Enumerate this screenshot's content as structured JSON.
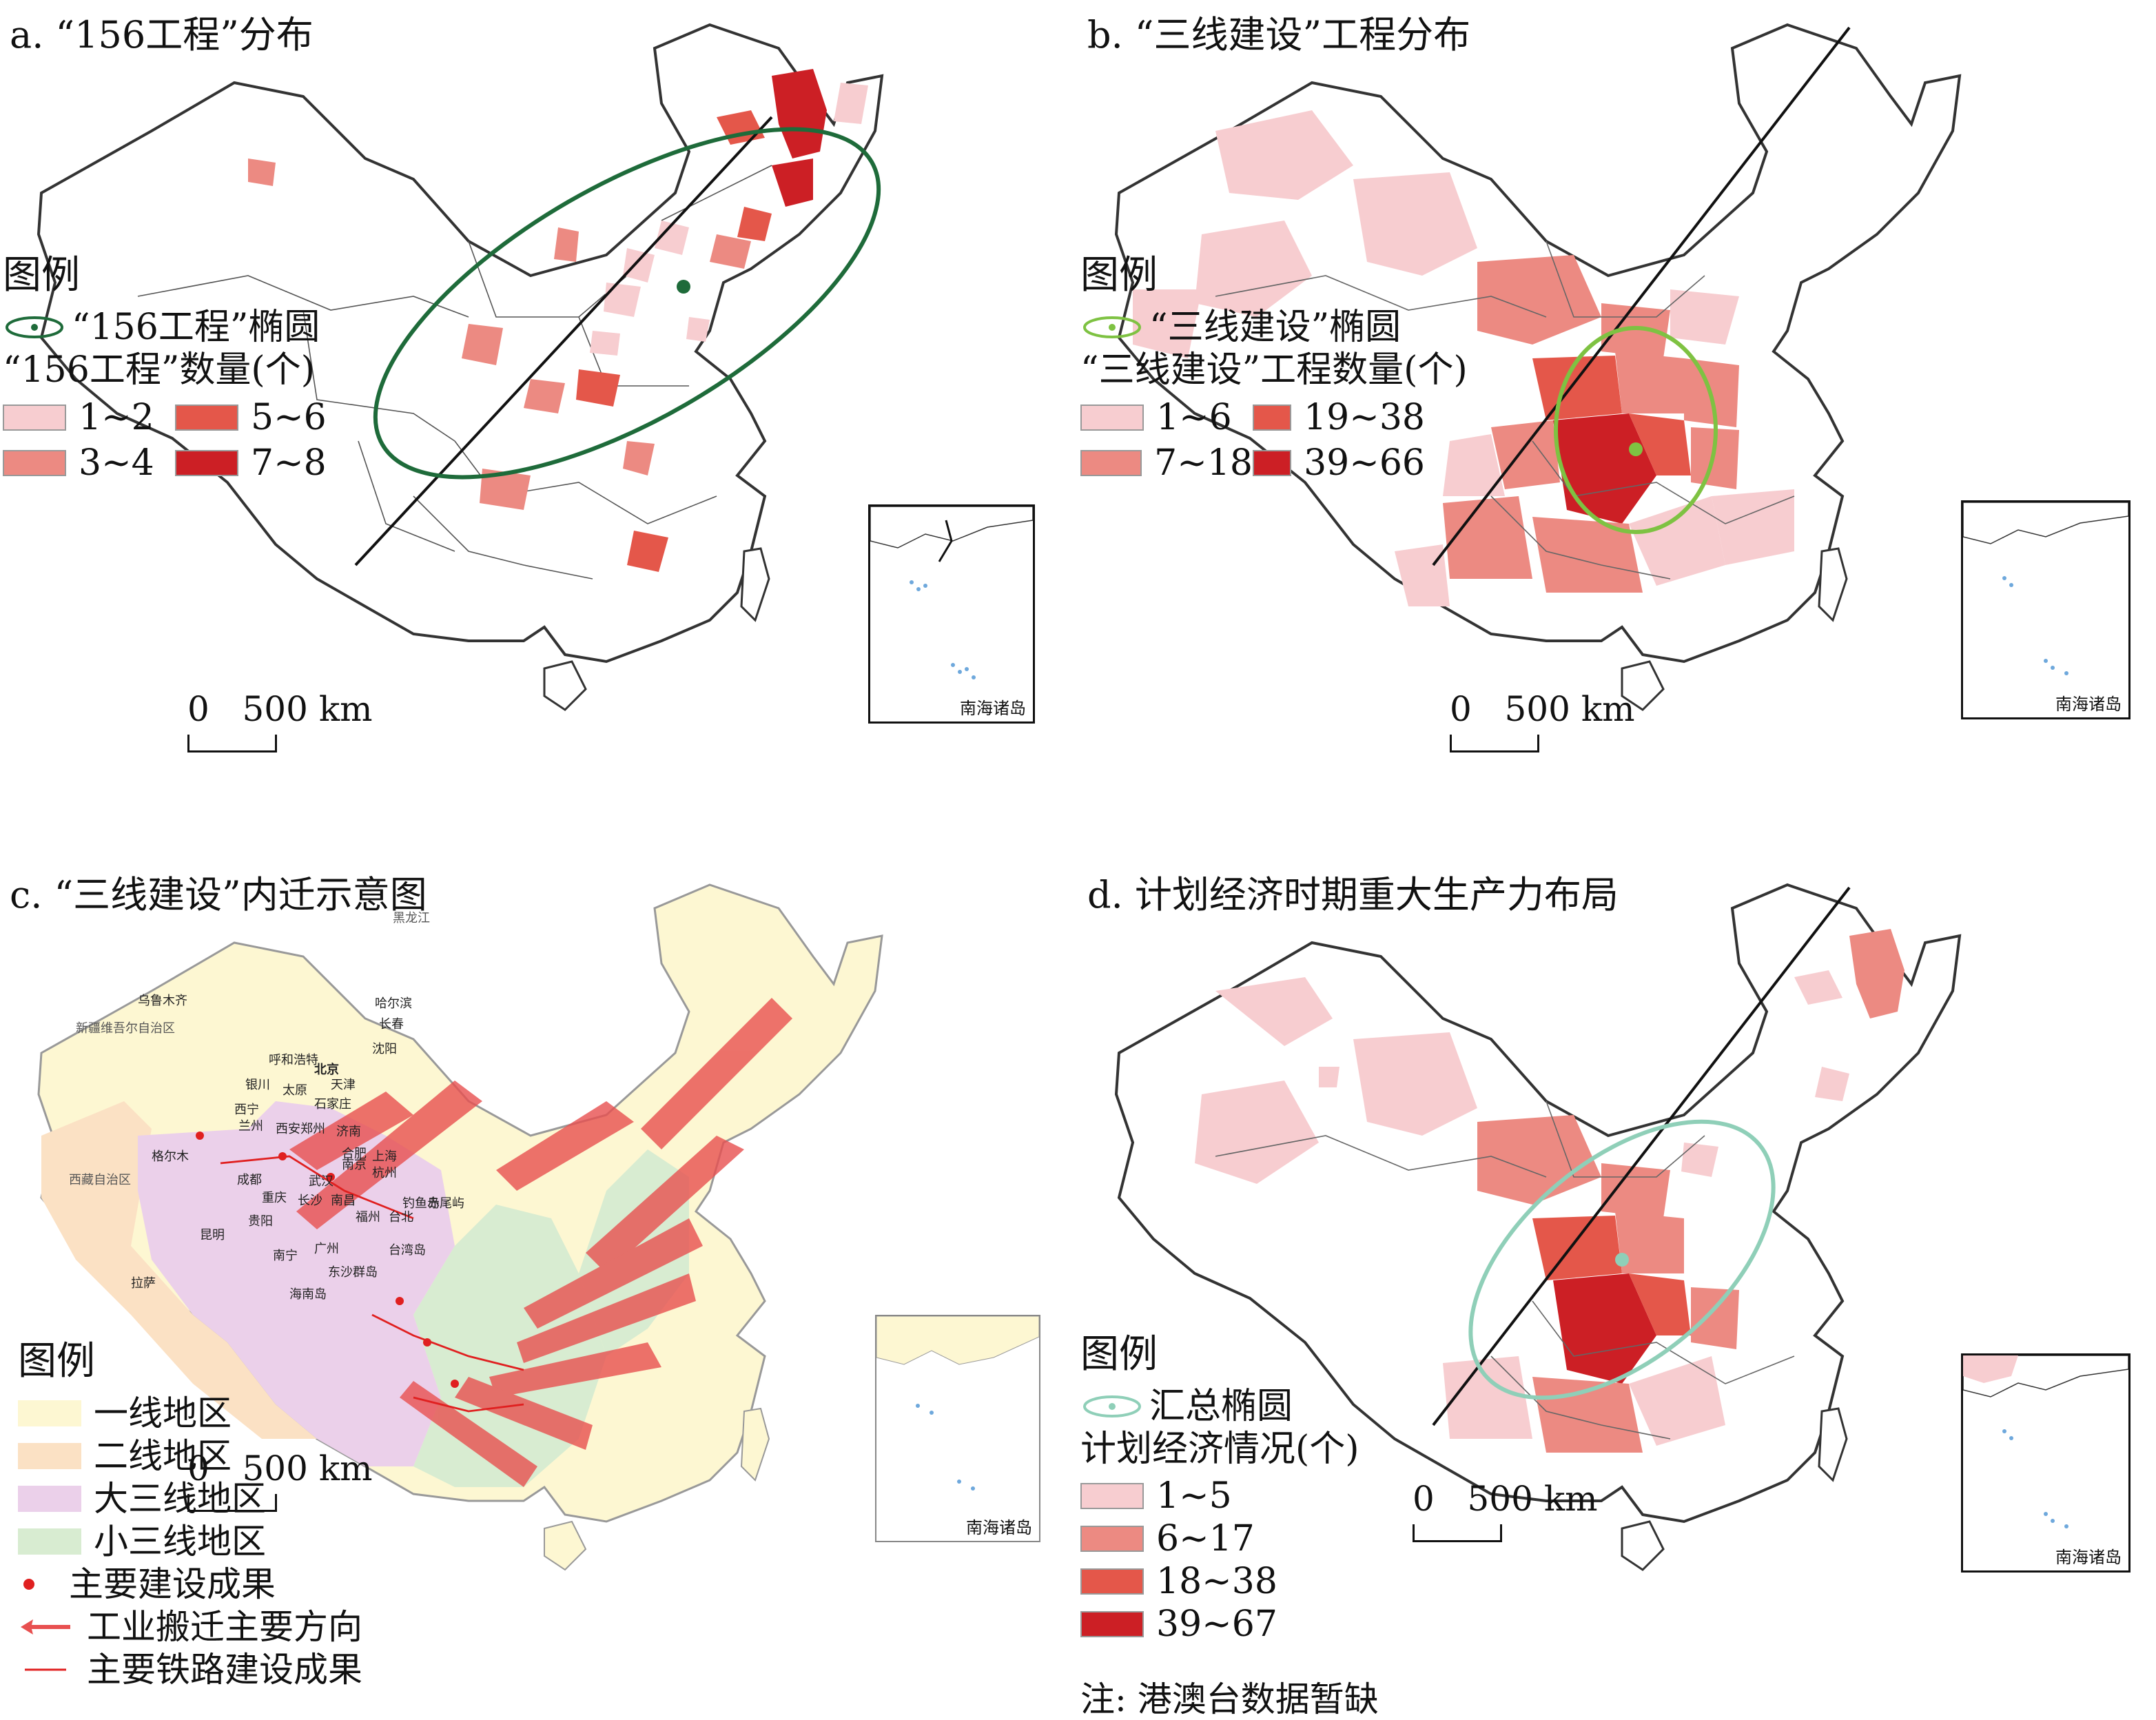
{
  "panels": {
    "a": {
      "title": "a. “156工程”分布",
      "legend_title": "图例",
      "ellipse_label": "“156工程”椭圆",
      "count_title": "“156工程”数量(个)",
      "classes": [
        {
          "label": "1~2",
          "color": "#f7cdd0"
        },
        {
          "label": "5~6",
          "color": "#e4574a"
        },
        {
          "label": "3~4",
          "color": "#ec8a82"
        },
        {
          "label": "7~8",
          "color": "#cc1f25"
        }
      ],
      "ellipse_color": "#1e6b3a"
    },
    "b": {
      "title": "b. “三线建设”工程分布",
      "legend_title": "图例",
      "ellipse_label": "“三线建设”椭圆",
      "count_title": "“三线建设”工程数量(个)",
      "classes": [
        {
          "label": "1~6",
          "color": "#f7cdd0"
        },
        {
          "label": "19~38",
          "color": "#e4574a"
        },
        {
          "label": "7~18",
          "color": "#ec8a82"
        },
        {
          "label": "39~66",
          "color": "#cc1f25"
        }
      ],
      "ellipse_color": "#7ec242"
    },
    "c": {
      "title": "c. “三线建设”内迁示意图",
      "legend_title": "图例",
      "items": [
        {
          "label": "一线地区",
          "color": "#fdf7d2"
        },
        {
          "label": "二线地区",
          "color": "#fbe1c4"
        },
        {
          "label": "大三线地区",
          "color": "#ebd0ea"
        },
        {
          "label": "小三线地区",
          "color": "#d8ecd1"
        },
        {
          "label": "主要建设成果",
          "color": "#e02020"
        },
        {
          "label": "工业搬迁主要方向",
          "color": "#e02020"
        },
        {
          "label": "主要铁路建设成果",
          "color": "#e02020"
        }
      ],
      "city_labels": [
        "乌鲁木齐",
        "拉萨",
        "格尔木",
        "呼和浩特",
        "北京",
        "天津",
        "哈尔滨",
        "长春",
        "沈阳",
        "太原",
        "石家庄",
        "济南",
        "西宁",
        "兰州",
        "银川",
        "西安",
        "郑州",
        "成都",
        "重庆",
        "武汉",
        "合肥",
        "南京",
        "上海",
        "杭州",
        "长沙",
        "南昌",
        "福州",
        "贵阳",
        "昆明",
        "南宁",
        "广州",
        "台北",
        "海南岛",
        "台湾岛",
        "钓鱼岛",
        "赤尾屿",
        "东沙群岛"
      ],
      "region_labels": [
        "新疆维吾尔自治区",
        "西藏自治区",
        "黑龙江"
      ]
    },
    "d": {
      "title": "d. 计划经济时期重大生产力布局",
      "legend_title": "图例",
      "ellipse_label": "汇总椭圆",
      "count_title": "计划经济情况(个)",
      "classes": [
        {
          "label": "1~5",
          "color": "#f7cdd0"
        },
        {
          "label": "6~17",
          "color": "#ec8a82"
        },
        {
          "label": "18~38",
          "color": "#e4574a"
        },
        {
          "label": "39~67",
          "color": "#cc1f25"
        }
      ],
      "ellipse_color": "#8fcfb8",
      "note": "注: 港澳台数据暂缺"
    }
  },
  "scale": {
    "zero": "0",
    "label": "500 km"
  },
  "inset_label": "南海诸岛"
}
